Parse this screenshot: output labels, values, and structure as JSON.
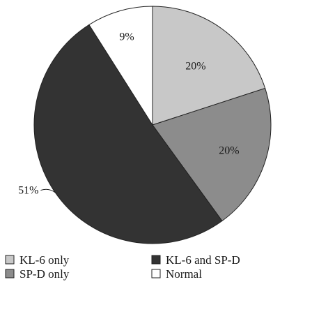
{
  "chart_data": {
    "type": "pie",
    "title": "",
    "slices": [
      {
        "label": "KL-6 only",
        "value": 20,
        "display": "20%",
        "color": "#c8c8c8"
      },
      {
        "label": "SP-D only",
        "value": 20,
        "display": "20%",
        "color": "#8c8c8c"
      },
      {
        "label": "KL-6 and SP-D",
        "value": 51,
        "display": "51%",
        "color": "#333333"
      },
      {
        "label": "Normal",
        "value": 9,
        "display": "9%",
        "color": "#ffffff"
      }
    ],
    "start": "12 o'clock",
    "direction": "clockwise",
    "legend_placement": "bottom",
    "legend_columns": 2
  }
}
